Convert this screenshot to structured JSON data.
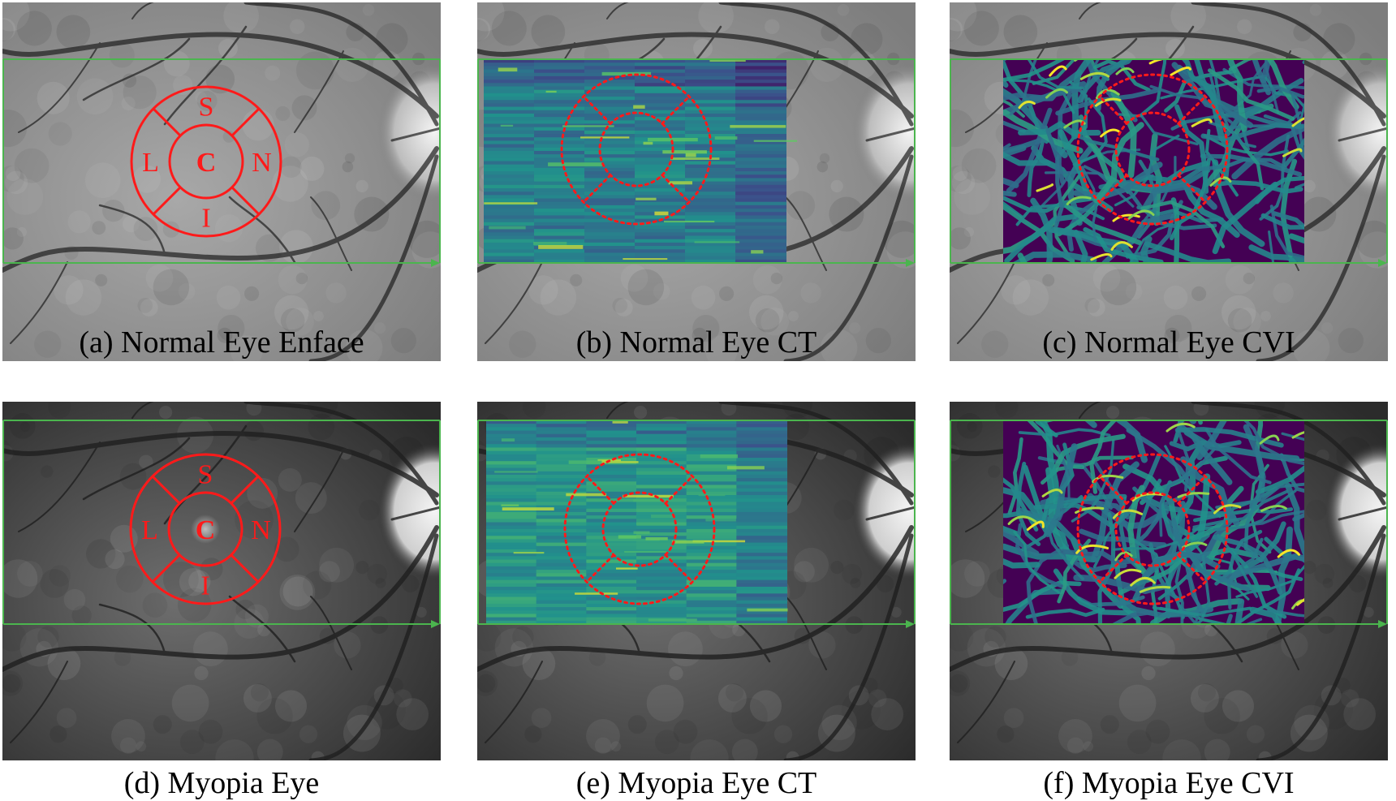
{
  "figure": {
    "panels": [
      {
        "id": "a",
        "caption": "(a) Normal Eye Enface",
        "kind": "enface",
        "eye": "normal"
      },
      {
        "id": "b",
        "caption": "(b) Normal Eye CT",
        "kind": "ct",
        "eye": "normal"
      },
      {
        "id": "c",
        "caption": "(c) Normal Eye CVI",
        "kind": "cvi",
        "eye": "normal"
      },
      {
        "id": "d",
        "caption": "(d) Myopia Eye",
        "kind": "enface",
        "eye": "myopia"
      },
      {
        "id": "e",
        "caption": "(e) Myopia Eye CT",
        "kind": "ct",
        "eye": "myopia"
      },
      {
        "id": "f",
        "caption": "(f) Myopia Eye CVI",
        "kind": "cvi",
        "eye": "myopia"
      }
    ],
    "etdrs_labels": {
      "superior": "S",
      "center": "C",
      "nasal": "N",
      "inferior": "I",
      "left": "L"
    },
    "colors": {
      "scan_box": "#4bb54e",
      "etdrs_grid": "#ff1a1a",
      "fundus_dark": "#3a3a3a",
      "fundus_light": "#a8a8a8",
      "viridis_low": "#440154",
      "viridis_mid": "#21918c",
      "viridis_high": "#fde725"
    }
  }
}
